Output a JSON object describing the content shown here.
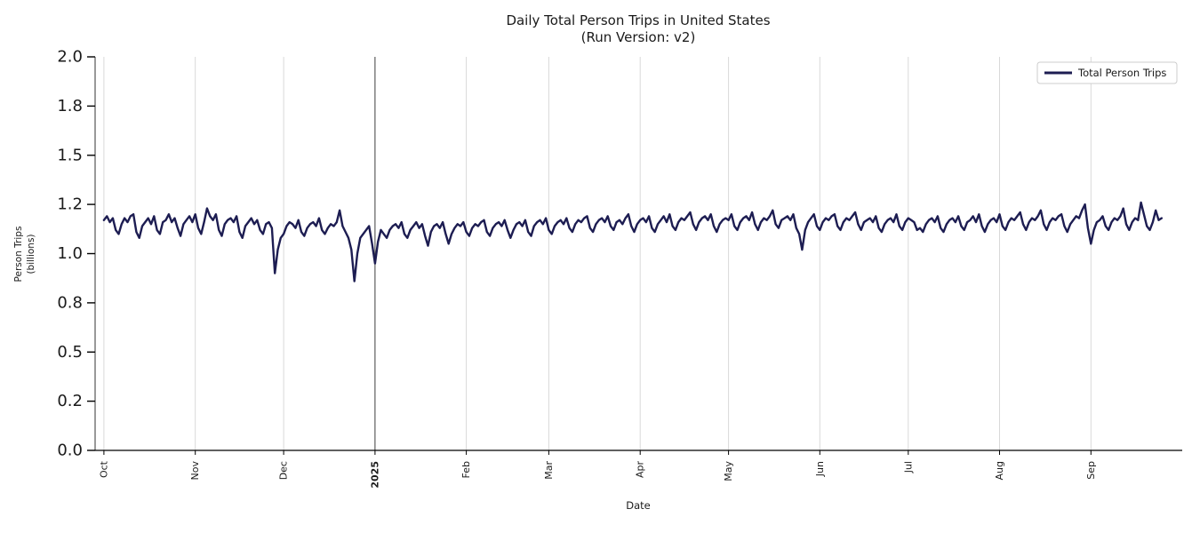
{
  "title": {
    "line1": "Daily Total Person Trips in United States",
    "line2": "(Run Version: v2)"
  },
  "axes": {
    "x_label": "Date",
    "y_label_line1": "Person Trips",
    "y_label_line2": "(billions)"
  },
  "legend": {
    "label": "Total Person Trips"
  },
  "colors": {
    "line": "#1d1d52",
    "grid": "#d9d9d9",
    "year_line": "#3d3d3d",
    "axis": "#000000",
    "tick_label": "#1a1a1a",
    "legend_border": "#cccccc",
    "background": "#ffffff"
  },
  "chart_data": {
    "type": "line",
    "title": "Daily Total Person Trips in United States (Run Version: v2)",
    "xlabel": "Date",
    "ylabel": "Person Trips (billions)",
    "ylim": [
      0.0,
      2.0
    ],
    "xlim": [
      -3,
      366
    ],
    "grid": "vertical-only",
    "legend_position": "upper right",
    "x_unit": "day index from 2024-10-01",
    "year_boundary_day": 92,
    "x_ticks": [
      {
        "day": 0,
        "label": "Oct",
        "bold": false
      },
      {
        "day": 31,
        "label": "Nov",
        "bold": false
      },
      {
        "day": 61,
        "label": "Dec",
        "bold": false
      },
      {
        "day": 92,
        "label": "2025",
        "bold": true
      },
      {
        "day": 123,
        "label": "Feb",
        "bold": false
      },
      {
        "day": 151,
        "label": "Mar",
        "bold": false
      },
      {
        "day": 182,
        "label": "Apr",
        "bold": false
      },
      {
        "day": 212,
        "label": "May",
        "bold": false
      },
      {
        "day": 243,
        "label": "Jun",
        "bold": false
      },
      {
        "day": 273,
        "label": "Jul",
        "bold": false
      },
      {
        "day": 304,
        "label": "Aug",
        "bold": false
      },
      {
        "day": 335,
        "label": "Sep",
        "bold": false
      }
    ],
    "y_ticks": [
      {
        "pos": 0.0,
        "label": "0.0"
      },
      {
        "pos": 0.25,
        "label": "0.2"
      },
      {
        "pos": 0.5,
        "label": "0.5"
      },
      {
        "pos": 0.75,
        "label": "0.8"
      },
      {
        "pos": 1.0,
        "label": "1.0"
      },
      {
        "pos": 1.25,
        "label": "1.2"
      },
      {
        "pos": 1.5,
        "label": "1.5"
      },
      {
        "pos": 1.75,
        "label": "1.8"
      },
      {
        "pos": 2.0,
        "label": "2.0"
      }
    ],
    "series": [
      {
        "name": "Total Person Trips",
        "values": [
          1.17,
          1.19,
          1.16,
          1.18,
          1.12,
          1.1,
          1.15,
          1.18,
          1.16,
          1.19,
          1.2,
          1.11,
          1.08,
          1.14,
          1.16,
          1.18,
          1.15,
          1.19,
          1.12,
          1.1,
          1.16,
          1.17,
          1.2,
          1.16,
          1.18,
          1.13,
          1.09,
          1.15,
          1.17,
          1.19,
          1.16,
          1.2,
          1.13,
          1.1,
          1.16,
          1.23,
          1.19,
          1.17,
          1.2,
          1.12,
          1.09,
          1.15,
          1.17,
          1.18,
          1.16,
          1.19,
          1.11,
          1.08,
          1.14,
          1.16,
          1.18,
          1.15,
          1.17,
          1.12,
          1.1,
          1.15,
          1.16,
          1.13,
          0.9,
          1.02,
          1.08,
          1.1,
          1.14,
          1.16,
          1.15,
          1.13,
          1.17,
          1.11,
          1.09,
          1.13,
          1.15,
          1.16,
          1.14,
          1.18,
          1.12,
          1.1,
          1.13,
          1.15,
          1.14,
          1.16,
          1.22,
          1.14,
          1.11,
          1.08,
          1.02,
          0.86,
          1.0,
          1.08,
          1.1,
          1.12,
          1.14,
          1.05,
          0.95,
          1.06,
          1.12,
          1.1,
          1.08,
          1.12,
          1.14,
          1.15,
          1.13,
          1.16,
          1.1,
          1.08,
          1.12,
          1.14,
          1.16,
          1.13,
          1.15,
          1.09,
          1.04,
          1.11,
          1.14,
          1.15,
          1.13,
          1.16,
          1.1,
          1.05,
          1.1,
          1.13,
          1.15,
          1.14,
          1.16,
          1.11,
          1.09,
          1.13,
          1.15,
          1.14,
          1.16,
          1.17,
          1.11,
          1.09,
          1.13,
          1.15,
          1.16,
          1.14,
          1.17,
          1.12,
          1.08,
          1.12,
          1.15,
          1.16,
          1.14,
          1.17,
          1.11,
          1.09,
          1.14,
          1.16,
          1.17,
          1.15,
          1.18,
          1.12,
          1.1,
          1.14,
          1.16,
          1.17,
          1.15,
          1.18,
          1.13,
          1.11,
          1.15,
          1.17,
          1.16,
          1.18,
          1.19,
          1.13,
          1.11,
          1.15,
          1.17,
          1.18,
          1.16,
          1.19,
          1.14,
          1.12,
          1.16,
          1.17,
          1.15,
          1.18,
          1.2,
          1.14,
          1.11,
          1.15,
          1.17,
          1.18,
          1.16,
          1.19,
          1.13,
          1.11,
          1.15,
          1.17,
          1.19,
          1.16,
          1.2,
          1.14,
          1.12,
          1.16,
          1.18,
          1.17,
          1.19,
          1.21,
          1.15,
          1.12,
          1.16,
          1.18,
          1.19,
          1.17,
          1.2,
          1.14,
          1.11,
          1.15,
          1.17,
          1.18,
          1.17,
          1.2,
          1.14,
          1.12,
          1.16,
          1.18,
          1.19,
          1.17,
          1.21,
          1.15,
          1.12,
          1.16,
          1.18,
          1.17,
          1.19,
          1.22,
          1.15,
          1.13,
          1.17,
          1.18,
          1.19,
          1.17,
          1.2,
          1.13,
          1.1,
          1.02,
          1.12,
          1.16,
          1.18,
          1.2,
          1.14,
          1.12,
          1.16,
          1.18,
          1.17,
          1.19,
          1.2,
          1.14,
          1.12,
          1.16,
          1.18,
          1.17,
          1.19,
          1.21,
          1.15,
          1.12,
          1.16,
          1.17,
          1.18,
          1.16,
          1.19,
          1.13,
          1.11,
          1.15,
          1.17,
          1.18,
          1.16,
          1.2,
          1.14,
          1.12,
          1.16,
          1.18,
          1.17,
          1.16,
          1.12,
          1.13,
          1.11,
          1.15,
          1.17,
          1.18,
          1.16,
          1.19,
          1.13,
          1.11,
          1.15,
          1.17,
          1.18,
          1.16,
          1.19,
          1.14,
          1.12,
          1.16,
          1.17,
          1.19,
          1.16,
          1.2,
          1.14,
          1.11,
          1.15,
          1.17,
          1.18,
          1.16,
          1.2,
          1.14,
          1.12,
          1.16,
          1.18,
          1.17,
          1.19,
          1.21,
          1.15,
          1.12,
          1.16,
          1.18,
          1.17,
          1.19,
          1.22,
          1.15,
          1.12,
          1.16,
          1.18,
          1.17,
          1.19,
          1.2,
          1.14,
          1.11,
          1.15,
          1.17,
          1.19,
          1.18,
          1.22,
          1.25,
          1.13,
          1.05,
          1.12,
          1.16,
          1.17,
          1.19,
          1.14,
          1.12,
          1.16,
          1.18,
          1.17,
          1.19,
          1.23,
          1.15,
          1.12,
          1.16,
          1.18,
          1.17,
          1.26,
          1.2,
          1.14,
          1.12,
          1.16,
          1.22,
          1.17,
          1.18
        ]
      }
    ]
  }
}
